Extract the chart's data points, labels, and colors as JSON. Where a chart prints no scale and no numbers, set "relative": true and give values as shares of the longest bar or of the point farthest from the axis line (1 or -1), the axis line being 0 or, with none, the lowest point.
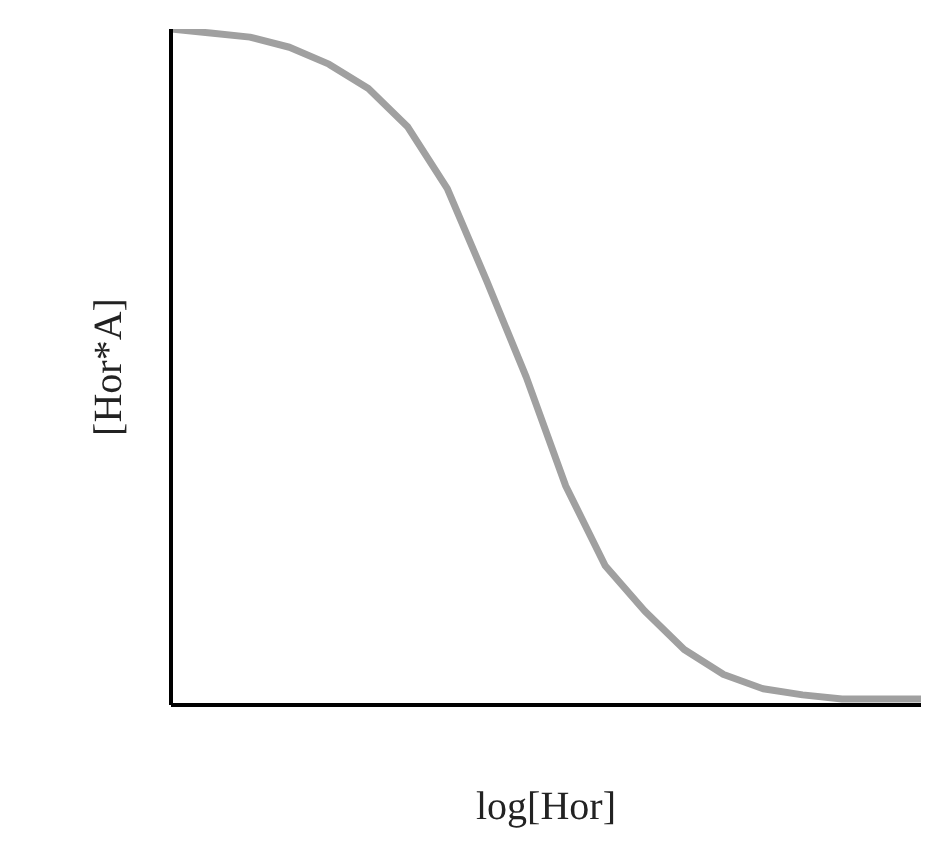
{
  "chart_data": {
    "type": "line",
    "relative": true,
    "xlabel": "log[Hor]",
    "ylabel": "[Hor*A]",
    "categories": [
      null,
      null,
      null,
      null,
      null,
      null,
      null,
      null,
      null,
      null,
      null,
      null,
      null,
      null,
      null,
      null,
      null,
      null,
      null,
      null
    ],
    "series": [
      {
        "color": "#a0a0a0",
        "values": [
          1.0,
          0.994,
          0.988,
          0.973,
          0.948,
          0.912,
          0.855,
          0.764,
          0.627,
          0.485,
          0.324,
          0.206,
          0.139,
          0.082,
          0.045,
          0.024,
          0.015,
          0.009,
          0.009,
          0.009
        ]
      }
    ],
    "marker": "none",
    "line_style": "solid"
  }
}
